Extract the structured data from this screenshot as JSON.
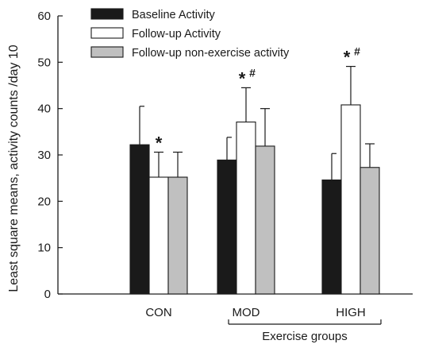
{
  "chart_data": {
    "type": "bar",
    "ylabel": "Least square means, activity counts /day 10",
    "ylim": [
      0,
      60
    ],
    "yticks": [
      0,
      10,
      20,
      30,
      40,
      50,
      60
    ],
    "categories": [
      "CON",
      "MOD",
      "HIGH"
    ],
    "group_label": "Exercise groups",
    "series": [
      {
        "name": "Baseline Activity",
        "color": "#1a1a1a",
        "values": [
          32.2,
          28.9,
          24.6
        ],
        "error": [
          8.3,
          4.9,
          5.7
        ]
      },
      {
        "name": "Follow-up Activity",
        "color": "#ffffff",
        "values": [
          25.2,
          37.1,
          40.8
        ],
        "error": [
          5.4,
          7.4,
          8.3
        ]
      },
      {
        "name": "Follow-up non-exercise activity",
        "color": "#c0c0c0",
        "values": [
          25.2,
          31.9,
          27.3
        ],
        "error": [
          5.4,
          8.1,
          5.1
        ]
      }
    ],
    "annotations": [
      {
        "category": "CON",
        "series": "Follow-up Activity",
        "text": "*",
        "sup": ""
      },
      {
        "category": "MOD",
        "series": "Follow-up Activity",
        "text": "*",
        "sup": "#"
      },
      {
        "category": "HIGH",
        "series": "Follow-up Activity",
        "text": "*",
        "sup": "#"
      }
    ],
    "legend_position": "top-left"
  }
}
